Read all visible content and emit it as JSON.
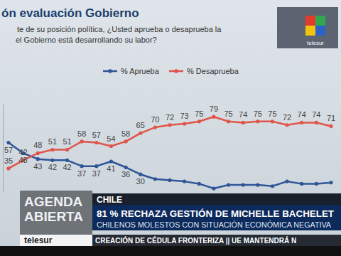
{
  "chart_data": {
    "type": "line",
    "title": "ón evaluación Gobierno",
    "subtitle": [
      "te de su posición política, ¿Usted aprueba o desaprueba la",
      "el Gobierno está desarrollando su labor?"
    ],
    "categories": [
      null,
      null,
      null,
      null,
      null,
      null,
      null,
      null,
      null,
      null,
      null,
      null,
      null,
      null,
      null,
      null,
      null,
      null,
      null,
      null,
      null,
      null,
      null
    ],
    "series": [
      {
        "name": "% Aprueba",
        "color": "#2f5597",
        "values": [
          57,
          48,
          43,
          42,
          42,
          37,
          37,
          41,
          36,
          30,
          26,
          25,
          24,
          22,
          18,
          21,
          21,
          21,
          20,
          24,
          22,
          22,
          23
        ],
        "value_labels": [
          "57",
          "48",
          "43",
          "42",
          "42",
          "37",
          "37",
          "41",
          "36",
          "30",
          null,
          null,
          null,
          null,
          null,
          null,
          null,
          null,
          null,
          null,
          null,
          null,
          null
        ]
      },
      {
        "name": "% Desaprueba",
        "color": "#e0554a",
        "values": [
          35,
          42,
          48,
          51,
          51,
          58,
          57,
          54,
          58,
          65,
          70,
          72,
          73,
          75,
          79,
          75,
          74,
          75,
          75,
          72,
          74,
          74,
          71
        ]
      }
    ],
    "ylim": [
      15,
      90
    ],
    "tick_labels": false,
    "data_labels": true,
    "legend": "top",
    "marker": "circle"
  },
  "overlay": {
    "logo": "telesur",
    "program": [
      "AGENDA",
      "ABIERTA"
    ],
    "country": "CHILE",
    "headline": "81 % RECHAZA GESTIÓN DE MICHELLE BACHELET",
    "subheadline": "CHILENOS MOLESTOS CON SITUACIÓN ECONÓMICA NEGATIVA",
    "channel": "telesur",
    "ticker": "CREACIÓN DE CÉDULA FRONTERIZA || UE MANTENDRÁ N"
  }
}
